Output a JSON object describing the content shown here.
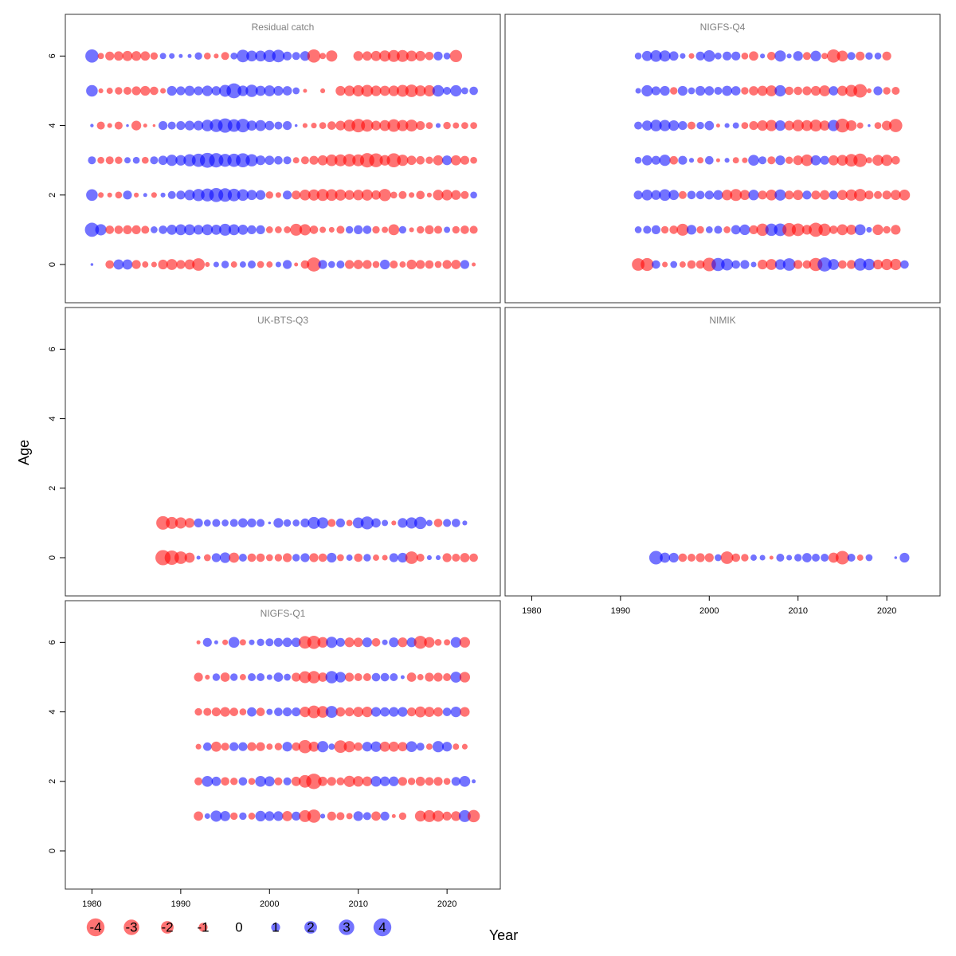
{
  "colors": {
    "negative": "rgba(255,0,0,0.55)",
    "positive": "rgba(0,0,255,0.55)",
    "panel_border": "#333333",
    "panel_title": "#7f7f7f"
  },
  "chart_data": {
    "type": "scatter",
    "subtype": "bubble",
    "xlabel": "Year",
    "ylabel": "Age",
    "xlim": [
      1977,
      2026
    ],
    "ylim": [
      -1.1,
      7.2
    ],
    "x_ticks": [
      "1980",
      "1990",
      "2000",
      "2010",
      "2020"
    ],
    "y_ticks": [
      "0",
      "2",
      "4",
      "6"
    ],
    "legend": {
      "values": [
        -4,
        -3,
        -2,
        -1,
        0,
        1,
        2,
        3,
        4
      ],
      "labels": [
        "-4",
        "-3",
        "-2",
        "-1",
        "0",
        "1",
        "2",
        "3",
        "4"
      ]
    },
    "panels": [
      {
        "title": "Residual catch",
        "series": [
          {
            "age": 6,
            "start": 1980,
            "residuals": [
              2.2,
              -0.5,
              -1.0,
              -1.1,
              -1.3,
              -1.2,
              -1.1,
              -0.7,
              0.5,
              0.4,
              0.2,
              0.2,
              0.7,
              -0.6,
              -0.3,
              -0.8,
              0.6,
              2.0,
              1.5,
              1.5,
              1.9,
              2.0,
              1.0,
              0.8,
              1.2,
              -2.2,
              -0.5,
              -1.6,
              null,
              null,
              -1.2,
              -1.1,
              -1.3,
              -1.6,
              -1.8,
              -1.8,
              -1.5,
              -1.3,
              -0.9,
              1.0,
              0.6,
              -1.9
            ]
          },
          {
            "age": 5,
            "start": 1980,
            "residuals": [
              1.7,
              -0.3,
              -0.5,
              -0.7,
              -0.8,
              -1.0,
              -1.2,
              -0.9,
              -0.4,
              1.2,
              1.0,
              1.3,
              1.0,
              1.4,
              1.1,
              1.8,
              2.8,
              1.4,
              1.9,
              1.3,
              1.5,
              1.2,
              1.1,
              0.6,
              -0.2,
              0.0,
              -0.3,
              0.0,
              -1.2,
              -1.4,
              -1.6,
              -1.8,
              -1.4,
              -1.3,
              -1.4,
              -1.8,
              -2.0,
              -1.5,
              -1.6,
              1.7,
              0.8,
              1.6,
              0.6,
              0.9
            ]
          },
          {
            "age": 4,
            "start": 1980,
            "residuals": [
              0.15,
              -0.8,
              -0.3,
              -0.8,
              0.1,
              -1.2,
              -0.2,
              -0.1,
              1.0,
              0.8,
              1.0,
              1.2,
              1.2,
              1.7,
              2.1,
              2.6,
              2.0,
              2.3,
              1.3,
              1.5,
              1.1,
              0.8,
              1.0,
              0.1,
              -0.3,
              -0.4,
              -0.6,
              -0.9,
              -1.2,
              -1.8,
              -2.3,
              -1.9,
              -1.2,
              -1.5,
              -2.0,
              -1.6,
              -1.8,
              -1.0,
              -0.6,
              0.3,
              -0.7,
              -0.5,
              -0.6,
              -0.6
            ]
          },
          {
            "age": 3,
            "start": 1980,
            "residuals": [
              0.8,
              -0.6,
              -0.8,
              -0.7,
              0.5,
              0.6,
              -0.6,
              0.8,
              1.1,
              1.6,
              1.4,
              1.9,
              2.2,
              2.8,
              2.6,
              2.1,
              2.2,
              2.5,
              1.9,
              1.2,
              1.1,
              0.9,
              0.8,
              -0.5,
              -0.8,
              -1.0,
              -1.3,
              -1.7,
              -1.8,
              -2.0,
              -1.8,
              -2.6,
              -2.4,
              -1.4,
              -2.5,
              -1.6,
              -1.1,
              -0.9,
              -0.7,
              -1.3,
              1.2,
              -1.3,
              -1.0,
              -0.6
            ]
          },
          {
            "age": 2,
            "start": 1980,
            "residuals": [
              1.7,
              -0.4,
              -0.3,
              -0.6,
              1.0,
              -0.3,
              0.2,
              -0.4,
              0.3,
              0.8,
              1.0,
              1.4,
              1.9,
              2.1,
              2.5,
              2.3,
              2.0,
              1.7,
              1.3,
              1.2,
              -0.7,
              -0.4,
              1.0,
              -1.0,
              -1.5,
              -1.6,
              -1.8,
              -1.7,
              -1.6,
              -1.2,
              -1.4,
              -1.6,
              -1.1,
              -1.9,
              -0.6,
              -0.8,
              -0.4,
              -0.9,
              -0.3,
              -1.4,
              -1.5,
              -1.2,
              -0.8,
              0.6
            ]
          },
          {
            "age": 1,
            "start": 1980,
            "residuals": [
              2.5,
              1.6,
              -0.9,
              -0.9,
              -1.0,
              -1.0,
              -0.8,
              0.6,
              0.9,
              1.3,
              1.5,
              1.5,
              1.2,
              1.5,
              1.3,
              1.8,
              1.5,
              1.3,
              1.0,
              1.0,
              -0.6,
              -0.6,
              -0.6,
              -1.8,
              -1.6,
              -0.9,
              -0.5,
              -0.4,
              -0.8,
              0.7,
              1.0,
              0.9,
              -0.7,
              -0.5,
              -1.5,
              0.7,
              -0.3,
              -0.7,
              -1.0,
              -0.8,
              0.5,
              -0.7,
              -0.9,
              -0.8
            ]
          },
          {
            "age": 0,
            "start": 1980,
            "residuals": [
              0.1,
              null,
              -0.9,
              1.3,
              1.3,
              -1.0,
              -0.5,
              -0.4,
              -1.2,
              -1.5,
              -1.0,
              -1.3,
              -2.0,
              -0.3,
              0.4,
              0.7,
              -0.5,
              0.5,
              0.8,
              -0.6,
              -0.5,
              0.4,
              1.0,
              -0.2,
              -0.9,
              -2.5,
              1.0,
              0.6,
              0.8,
              -1.0,
              -1.1,
              -1.0,
              -0.6,
              1.2,
              -0.8,
              -0.5,
              -1.2,
              -1.0,
              -0.9,
              -0.6,
              -1.0,
              -1.1,
              1.0,
              -0.2
            ]
          }
        ]
      },
      {
        "title": "NIGFS-Q4",
        "series": [
          {
            "age": 6,
            "start": 1992,
            "residuals": [
              0.6,
              1.3,
              1.7,
              1.6,
              1.1,
              0.4,
              -0.4,
              1.0,
              1.7,
              0.6,
              1.0,
              1.0,
              -0.6,
              -1.1,
              0.3,
              -0.9,
              1.6,
              0.3,
              1.2,
              -0.8,
              1.4,
              -0.5,
              -2.2,
              -1.5,
              0.8,
              -1.0,
              0.7,
              0.6,
              -1.0
            ]
          },
          {
            "age": 5,
            "start": 1992,
            "residuals": [
              0.4,
              1.6,
              1.0,
              1.2,
              -0.7,
              1.2,
              0.6,
              1.2,
              1.1,
              0.8,
              1.3,
              1.1,
              -0.7,
              -1.1,
              -1.3,
              -1.5,
              1.6,
              -0.9,
              -0.9,
              -1.0,
              -1.2,
              -1.5,
              1.1,
              -1.3,
              -1.8,
              -2.3,
              -0.3,
              1.0,
              -0.7,
              -0.8
            ]
          },
          {
            "age": 4,
            "start": 1992,
            "residuals": [
              0.8,
              1.3,
              1.7,
              1.6,
              1.4,
              1.0,
              -0.8,
              0.7,
              1.1,
              -0.2,
              0.3,
              0.5,
              -0.6,
              -1.0,
              -1.4,
              -1.6,
              1.4,
              -1.2,
              -1.7,
              -1.5,
              -1.8,
              -1.3,
              1.6,
              -2.4,
              -1.4,
              -0.5,
              0.1,
              -0.6,
              -1.2,
              -2.2
            ]
          },
          {
            "age": 3,
            "start": 1992,
            "residuals": [
              0.6,
              1.3,
              1.0,
              1.6,
              -0.9,
              1.0,
              0.3,
              -0.5,
              0.9,
              -0.2,
              0.3,
              -0.5,
              -0.4,
              1.5,
              0.8,
              -0.8,
              1.2,
              -0.7,
              -1.2,
              -1.7,
              1.3,
              1.0,
              -1.3,
              -1.5,
              -2.0,
              -2.3,
              -0.5,
              -1.5,
              -1.6,
              -0.9
            ]
          },
          {
            "age": 2,
            "start": 1992,
            "residuals": [
              1.0,
              1.5,
              1.2,
              1.7,
              1.3,
              -0.8,
              0.9,
              0.9,
              1.0,
              1.2,
              -1.4,
              -1.8,
              -1.3,
              1.4,
              -1.0,
              -1.5,
              1.6,
              -1.0,
              -1.3,
              1.0,
              -1.0,
              -1.2,
              1.0,
              -1.3,
              -1.6,
              -1.9,
              -1.0,
              -0.8,
              -1.0,
              -1.3,
              -1.5
            ]
          },
          {
            "age": 1,
            "start": 1992,
            "residuals": [
              0.6,
              0.8,
              1.0,
              -0.7,
              -0.9,
              -1.8,
              1.2,
              -0.7,
              0.6,
              0.8,
              -0.6,
              1.1,
              1.4,
              -1.0,
              -1.9,
              1.9,
              2.0,
              -2.3,
              -2.0,
              -1.2,
              -2.5,
              -1.9,
              -0.9,
              -1.5,
              -1.3,
              1.5,
              0.4,
              -1.4,
              -0.7,
              -1.2
            ]
          },
          {
            "age": 0,
            "start": 1992,
            "residuals": [
              -2.0,
              -2.1,
              0.9,
              -0.4,
              0.6,
              -0.5,
              -0.9,
              -0.9,
              -2.3,
              2.2,
              1.8,
              0.9,
              1.0,
              0.4,
              -1.2,
              -1.5,
              1.4,
              2.0,
              -1.0,
              -0.9,
              -2.2,
              2.5,
              1.5,
              -0.9,
              -1.0,
              1.9,
              1.7,
              -1.2,
              -1.6,
              -1.6,
              0.9
            ]
          }
        ]
      },
      {
        "title": "UK-BTS-Q3",
        "series": [
          {
            "age": 1,
            "start": 1988,
            "residuals": [
              -2.3,
              -1.8,
              -1.6,
              -1.2,
              1.0,
              0.6,
              0.8,
              0.6,
              0.8,
              1.1,
              1.0,
              0.8,
              0.1,
              1.2,
              0.7,
              0.6,
              1.0,
              1.8,
              1.6,
              -0.8,
              1.0,
              -0.5,
              1.5,
              2.1,
              1.1,
              0.5,
              -0.3,
              1.2,
              1.6,
              1.9,
              0.5,
              -0.9,
              0.8,
              0.9,
              0.3
            ]
          },
          {
            "age": 0,
            "start": 1988,
            "residuals": [
              -2.9,
              -2.6,
              -2.0,
              -1.3,
              0.2,
              -0.6,
              1.0,
              1.4,
              -1.3,
              0.8,
              -0.9,
              -0.9,
              -0.6,
              -0.7,
              -1.0,
              0.7,
              1.0,
              -1.0,
              -0.9,
              1.2,
              -0.6,
              0.5,
              -0.9,
              0.7,
              -0.5,
              -0.4,
              1.0,
              1.2,
              -2.0,
              -0.8,
              0.3,
              0.3,
              -1.0,
              -0.8,
              -1.1,
              -0.9
            ]
          }
        ]
      },
      {
        "title": "NIMIK",
        "series": [
          {
            "age": 0,
            "start": 1994,
            "residuals": [
              2.3,
              1.3,
              1.2,
              -0.9,
              -0.8,
              -1.0,
              -1.0,
              0.6,
              -2.0,
              -0.9,
              -0.7,
              0.5,
              0.4,
              -0.2,
              0.8,
              0.4,
              0.7,
              1.1,
              0.8,
              0.8,
              -1.3,
              -2.3,
              0.8,
              -0.5,
              0.6,
              null,
              null,
              0.1,
              1.2
            ]
          }
        ]
      },
      {
        "title": "NIGFS-Q1",
        "series": [
          {
            "age": 6,
            "start": 1992,
            "residuals": [
              -0.2,
              1.0,
              0.2,
              -0.4,
              1.5,
              -0.5,
              0.4,
              0.7,
              0.8,
              1.0,
              1.1,
              1.1,
              -2.0,
              -2.2,
              -1.4,
              1.6,
              1.0,
              -1.2,
              -1.1,
              1.2,
              -0.9,
              0.4,
              1.2,
              -1.2,
              1.2,
              -2.1,
              -1.4,
              -0.6,
              -0.5,
              1.4,
              -1.4
            ]
          },
          {
            "age": 5,
            "start": 1992,
            "residuals": [
              -1.0,
              -0.3,
              0.7,
              -1.1,
              0.7,
              -0.5,
              0.8,
              0.8,
              0.4,
              1.1,
              0.6,
              -1.0,
              -1.8,
              -1.9,
              -1.1,
              1.9,
              1.4,
              -1.0,
              -0.8,
              -0.8,
              0.9,
              0.9,
              0.8,
              0.2,
              -1.1,
              -0.5,
              -1.0,
              -1.0,
              -0.8,
              1.5,
              -1.4
            ]
          },
          {
            "age": 4,
            "start": 1992,
            "residuals": [
              -0.7,
              -0.8,
              -1.0,
              -1.2,
              -0.9,
              -0.6,
              1.1,
              -0.9,
              0.5,
              0.9,
              1.0,
              1.0,
              -1.4,
              -2.0,
              -1.7,
              1.8,
              -1.1,
              -1.0,
              -1.3,
              -1.4,
              1.2,
              1.1,
              1.2,
              1.2,
              -1.0,
              -1.5,
              -1.3,
              -1.1,
              0.9,
              1.4,
              -1.2
            ]
          },
          {
            "age": 3,
            "start": 1992,
            "residuals": [
              -0.4,
              0.9,
              -1.3,
              -0.8,
              1.0,
              1.0,
              -1.0,
              -1.0,
              -0.5,
              -0.7,
              1.2,
              -0.9,
              -2.2,
              -1.3,
              1.6,
              0.5,
              -2.0,
              -1.6,
              -0.9,
              1.2,
              1.4,
              -1.3,
              -1.3,
              -1.1,
              1.5,
              0.8,
              -0.5,
              1.6,
              1.2,
              -0.5,
              -0.4
            ]
          },
          {
            "age": 2,
            "start": 1992,
            "residuals": [
              -0.8,
              1.5,
              1.1,
              -0.9,
              -0.7,
              0.9,
              -0.6,
              1.5,
              1.3,
              -0.8,
              0.8,
              -1.1,
              -2.0,
              -3.0,
              -1.1,
              -1.0,
              -0.8,
              -1.6,
              -1.4,
              -1.2,
              1.4,
              1.2,
              1.2,
              -1.0,
              -0.7,
              -1.1,
              -0.9,
              -1.0,
              -0.6,
              1.0,
              1.5,
              0.2
            ]
          },
          {
            "age": 1,
            "start": 1992,
            "residuals": [
              -1.1,
              0.4,
              1.6,
              1.3,
              -0.7,
              0.7,
              -0.6,
              1.4,
              1.2,
              1.2,
              -1.3,
              1.0,
              -1.8,
              -2.2,
              0.3,
              -1.0,
              -0.8,
              -0.5,
              1.2,
              0.8,
              -1.1,
              1.0,
              -0.2,
              -0.7,
              null,
              -1.5,
              -1.8,
              -1.6,
              -1.0,
              -1.2,
              1.8,
              -1.9
            ]
          }
        ]
      }
    ]
  }
}
